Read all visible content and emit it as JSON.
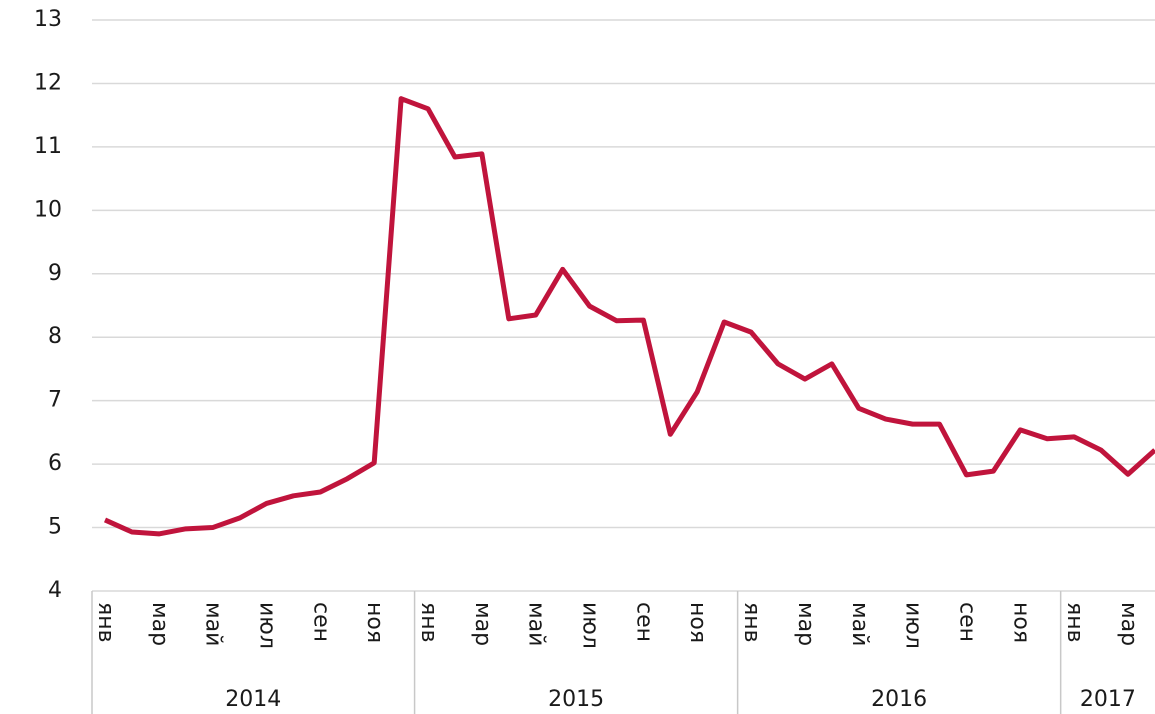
{
  "chart_data": {
    "type": "line",
    "categories": [
      "янв",
      null,
      "мар",
      null,
      "май",
      null,
      "июл",
      null,
      "сен",
      null,
      "ноя",
      null,
      "янв",
      null,
      "мар",
      null,
      "май",
      null,
      "июл",
      null,
      "сен",
      null,
      "ноя",
      null,
      "янв",
      null,
      "мар",
      null,
      "май",
      null,
      "июл",
      null,
      "сен",
      null,
      "ноя",
      null,
      "янв",
      null,
      "мар",
      null
    ],
    "years": [
      "2014",
      "2015",
      "2016",
      "2017"
    ],
    "series": [
      {
        "color": "#c0143c",
        "values": [
          5.12,
          4.93,
          4.9,
          4.98,
          5.0,
          5.15,
          5.38,
          5.5,
          5.56,
          5.77,
          6.02,
          11.76,
          11.6,
          10.84,
          10.89,
          8.29,
          8.35,
          9.07,
          8.49,
          8.26,
          8.27,
          6.47,
          7.14,
          8.24,
          8.08,
          7.58,
          7.34,
          7.58,
          6.88,
          6.71,
          6.63,
          6.63,
          5.83,
          5.89,
          6.54,
          6.4,
          6.43,
          6.22,
          5.84,
          6.22
        ]
      }
    ],
    "ylim": [
      4,
      13
    ],
    "yticks": [
      4,
      5,
      6,
      7,
      8,
      9,
      10,
      11,
      12,
      13
    ],
    "grid": true
  }
}
